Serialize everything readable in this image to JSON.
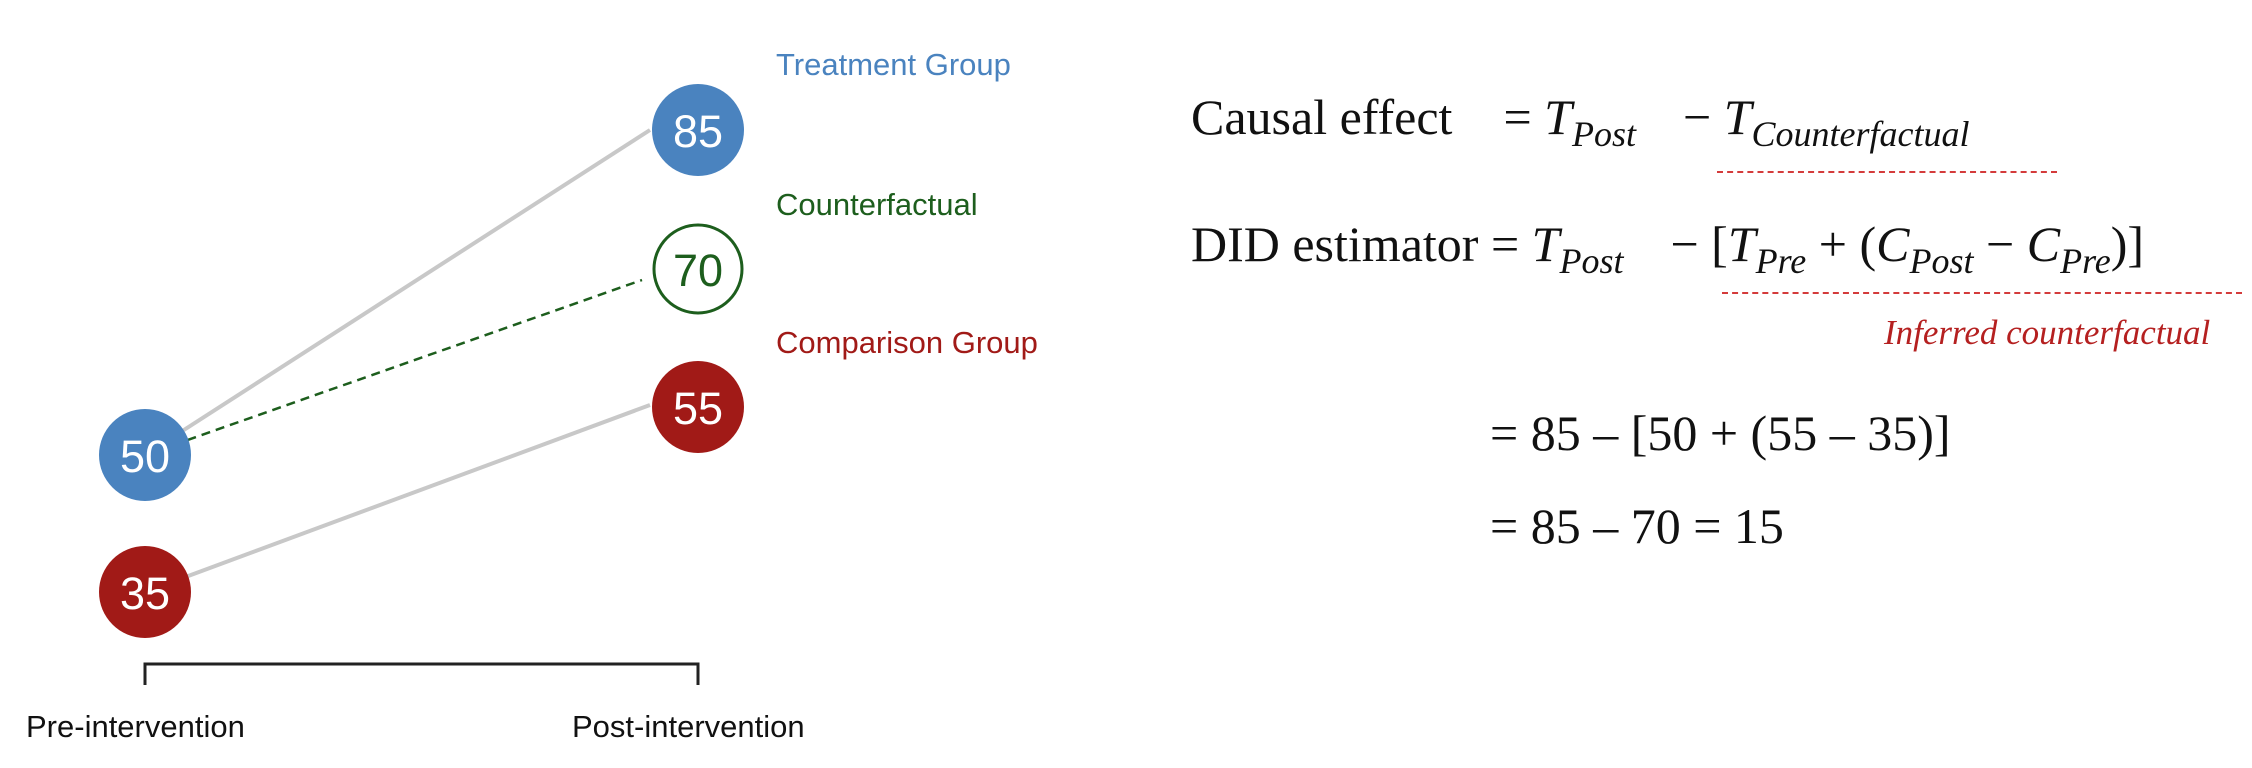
{
  "diagram": {
    "groups": {
      "treatment": {
        "label": "Treatment Group",
        "color": "#4a83bf",
        "pre": "50",
        "post": "85"
      },
      "counterfactual": {
        "label": "Counterfactual",
        "color": "#1d5e1d",
        "post": "70"
      },
      "comparison": {
        "label": "Comparison Group",
        "color": "#a11a17",
        "pre": "35",
        "post": "55"
      }
    },
    "axis": {
      "pre_label": "Pre-intervention",
      "post_label": "Post-intervention"
    },
    "line_color": "#c8c8c8"
  },
  "equations": {
    "causal": {
      "label": "Causal effect",
      "eq": "=",
      "t": "T",
      "post_sub": "Post",
      "minus": "−",
      "cf_sub": "Counterfactual"
    },
    "did": {
      "label": "DID estimator",
      "eq": "=",
      "t": "T",
      "post_sub": "Post",
      "minus": "−",
      "open": "[",
      "pre_sub": "Pre",
      "plus": "+",
      "paren_open": "(",
      "c": "C",
      "c_post_sub": "Post",
      "minus2": "−",
      "c_pre_sub": "Pre",
      "close": ")]"
    },
    "inferred_note": "Inferred counterfactual",
    "note_color": "#b52020",
    "step1": "= 85 – [50 + (55 – 35)]",
    "step2": "= 85 – 70 = 15"
  }
}
